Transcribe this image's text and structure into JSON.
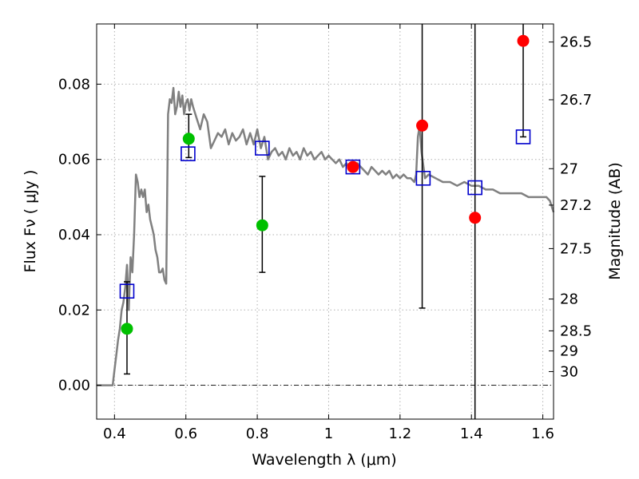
{
  "chart_data": {
    "type": "scatter",
    "title": "",
    "xlabel": "Wavelength  λ (μm)",
    "ylabel_left": "Flux  Fν  ( μJy )",
    "ylabel_right": "Magnitude (AB)",
    "xlim": [
      0.35,
      1.63
    ],
    "ylim": [
      -0.009,
      0.096
    ],
    "grid": true,
    "x_ticks": [
      {
        "value": 0.4,
        "label": "0.4"
      },
      {
        "value": 0.6,
        "label": "0.6"
      },
      {
        "value": 0.8,
        "label": "0.8"
      },
      {
        "value": 1.0,
        "label": "1"
      },
      {
        "value": 1.2,
        "label": "1.2"
      },
      {
        "value": 1.4,
        "label": "1.4"
      },
      {
        "value": 1.6,
        "label": "1.6"
      }
    ],
    "y_ticks": [
      {
        "value": 0.0,
        "label": "0.00"
      },
      {
        "value": 0.02,
        "label": "0.02"
      },
      {
        "value": 0.04,
        "label": "0.04"
      },
      {
        "value": 0.06,
        "label": "0.06"
      },
      {
        "value": 0.08,
        "label": "0.08"
      }
    ],
    "magnitude_ticks": [
      {
        "value": 26.5,
        "label": "26.5"
      },
      {
        "value": 26.7,
        "label": "26.7"
      },
      {
        "value": 27.0,
        "label": "27"
      },
      {
        "value": 27.2,
        "label": "27.2"
      },
      {
        "value": 27.5,
        "label": "27.5"
      },
      {
        "value": 28.0,
        "label": "28"
      },
      {
        "value": 28.5,
        "label": "28.5"
      },
      {
        "value": 29.0,
        "label": "29"
      },
      {
        "value": 30.0,
        "label": "30"
      }
    ],
    "colors": {
      "model": "#808080",
      "observed_detection": "#00c000",
      "observed_limit": "#ff0000",
      "model_photometry": "#0000cc",
      "errorbar": "#000000",
      "grid": "#b0b0b0"
    },
    "series": [
      {
        "name": "model_sed",
        "kind": "line",
        "x": [
          0.35,
          0.395,
          0.4,
          0.405,
          0.41,
          0.415,
          0.42,
          0.425,
          0.43,
          0.435,
          0.44,
          0.445,
          0.45,
          0.455,
          0.46,
          0.465,
          0.47,
          0.475,
          0.48,
          0.485,
          0.49,
          0.495,
          0.5,
          0.505,
          0.51,
          0.515,
          0.52,
          0.525,
          0.53,
          0.535,
          0.54,
          0.545,
          0.55,
          0.555,
          0.56,
          0.565,
          0.57,
          0.575,
          0.58,
          0.585,
          0.59,
          0.595,
          0.6,
          0.605,
          0.61,
          0.615,
          0.62,
          0.63,
          0.64,
          0.65,
          0.66,
          0.67,
          0.68,
          0.69,
          0.7,
          0.71,
          0.72,
          0.73,
          0.74,
          0.75,
          0.76,
          0.77,
          0.78,
          0.79,
          0.8,
          0.81,
          0.82,
          0.83,
          0.84,
          0.85,
          0.86,
          0.87,
          0.88,
          0.89,
          0.9,
          0.91,
          0.92,
          0.93,
          0.94,
          0.95,
          0.96,
          0.97,
          0.98,
          0.99,
          1.0,
          1.01,
          1.02,
          1.03,
          1.04,
          1.05,
          1.06,
          1.07,
          1.08,
          1.09,
          1.1,
          1.11,
          1.12,
          1.13,
          1.14,
          1.15,
          1.16,
          1.17,
          1.18,
          1.19,
          1.2,
          1.21,
          1.22,
          1.23,
          1.24,
          1.245,
          1.25,
          1.255,
          1.26,
          1.27,
          1.28,
          1.3,
          1.32,
          1.34,
          1.36,
          1.38,
          1.4,
          1.42,
          1.44,
          1.46,
          1.48,
          1.5,
          1.52,
          1.54,
          1.56,
          1.58,
          1.6,
          1.61,
          1.62,
          1.63
        ],
        "y": [
          0.0,
          0.0,
          0.004,
          0.008,
          0.012,
          0.015,
          0.02,
          0.022,
          0.026,
          0.032,
          0.02,
          0.034,
          0.03,
          0.04,
          0.056,
          0.054,
          0.05,
          0.052,
          0.05,
          0.052,
          0.046,
          0.048,
          0.044,
          0.042,
          0.04,
          0.036,
          0.034,
          0.03,
          0.03,
          0.031,
          0.028,
          0.027,
          0.072,
          0.076,
          0.075,
          0.079,
          0.072,
          0.074,
          0.078,
          0.074,
          0.077,
          0.072,
          0.075,
          0.076,
          0.073,
          0.076,
          0.074,
          0.071,
          0.068,
          0.072,
          0.07,
          0.063,
          0.065,
          0.067,
          0.066,
          0.068,
          0.064,
          0.067,
          0.065,
          0.066,
          0.068,
          0.064,
          0.067,
          0.064,
          0.068,
          0.063,
          0.066,
          0.06,
          0.062,
          0.063,
          0.061,
          0.062,
          0.06,
          0.063,
          0.061,
          0.062,
          0.06,
          0.063,
          0.061,
          0.062,
          0.06,
          0.061,
          0.062,
          0.06,
          0.061,
          0.06,
          0.059,
          0.06,
          0.058,
          0.059,
          0.057,
          0.058,
          0.059,
          0.058,
          0.057,
          0.056,
          0.058,
          0.057,
          0.056,
          0.057,
          0.056,
          0.057,
          0.055,
          0.056,
          0.055,
          0.056,
          0.055,
          0.055,
          0.054,
          0.056,
          0.066,
          0.069,
          0.062,
          0.055,
          0.056,
          0.055,
          0.054,
          0.054,
          0.053,
          0.054,
          0.053,
          0.053,
          0.052,
          0.052,
          0.051,
          0.051,
          0.051,
          0.051,
          0.05,
          0.05,
          0.05,
          0.05,
          0.049,
          0.046
        ]
      },
      {
        "name": "observed_detections",
        "kind": "points",
        "marker": "circle",
        "points": [
          {
            "x": 0.435,
            "y": 0.015,
            "err_low": 0.003,
            "err_high": 0.0275
          },
          {
            "x": 0.608,
            "y": 0.0655,
            "err_low": 0.0605,
            "err_high": 0.072
          },
          {
            "x": 0.814,
            "y": 0.0425,
            "err_low": 0.03,
            "err_high": 0.0555
          }
        ]
      },
      {
        "name": "observed_limits",
        "kind": "points",
        "marker": "circle",
        "points": [
          {
            "x": 1.068,
            "y": 0.058,
            "err_low": 0.057,
            "err_high": 0.059
          },
          {
            "x": 1.262,
            "y": 0.069,
            "err_low": 0.0205,
            "err_high": 0.096
          },
          {
            "x": 1.41,
            "y": 0.0445,
            "err_low": -0.009,
            "err_high": 0.096
          },
          {
            "x": 1.545,
            "y": 0.0915,
            "err_low": 0.066,
            "err_high": 0.096
          }
        ]
      },
      {
        "name": "model_photometry",
        "kind": "points",
        "marker": "square",
        "points": [
          {
            "x": 0.435,
            "y": 0.025
          },
          {
            "x": 0.606,
            "y": 0.0615
          },
          {
            "x": 0.814,
            "y": 0.063
          },
          {
            "x": 1.068,
            "y": 0.058
          },
          {
            "x": 1.265,
            "y": 0.055
          },
          {
            "x": 1.41,
            "y": 0.0525
          },
          {
            "x": 1.545,
            "y": 0.066
          }
        ]
      }
    ]
  }
}
